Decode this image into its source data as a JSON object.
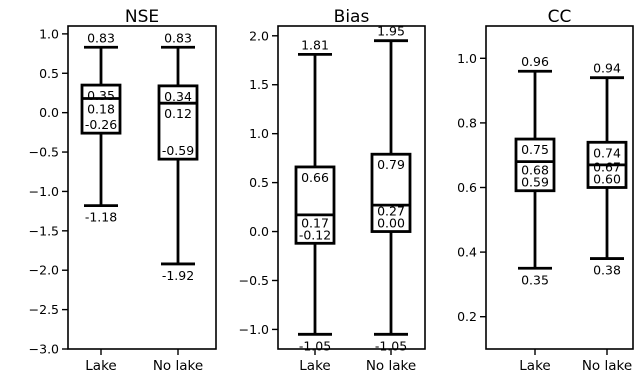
{
  "chart_data": [
    {
      "type": "box",
      "title": "NSE",
      "categories": [
        "Lake",
        "No lake"
      ],
      "ylim": [
        -3.0,
        1.1
      ],
      "yticks": [
        1.0,
        0.5,
        0.0,
        -0.5,
        -1.0,
        -1.5,
        -2.0,
        -2.5,
        -3.0
      ],
      "ytick_labels": [
        "1.0",
        "0.5",
        "0.0",
        "−0.5",
        "−1.0",
        "−1.5",
        "−2.0",
        "−2.5",
        "−3.0"
      ],
      "boxes": [
        {
          "category": "Lake",
          "whisker_low": -1.18,
          "q1": -0.26,
          "median": 0.18,
          "q3": 0.35,
          "whisker_high": 0.83,
          "labels": {
            "whisker_high": "0.83",
            "q3": "0.35",
            "median": "0.18",
            "q1": "-0.26",
            "whisker_low": "-1.18"
          }
        },
        {
          "category": "No lake",
          "whisker_low": -1.92,
          "q1": -0.59,
          "median": 0.12,
          "q3": 0.34,
          "whisker_high": 0.83,
          "labels": {
            "whisker_high": "0.83",
            "q3": "0.34",
            "median": "0.12",
            "q1": "-0.59",
            "whisker_low": "-1.92"
          }
        }
      ]
    },
    {
      "type": "box",
      "title": "Bias",
      "categories": [
        "Lake",
        "No lake"
      ],
      "ylim": [
        -1.2,
        2.1
      ],
      "yticks": [
        2.0,
        1.5,
        1.0,
        0.5,
        0.0,
        -0.5,
        -1.0
      ],
      "ytick_labels": [
        "2.0",
        "1.5",
        "1.0",
        "0.5",
        "0.0",
        "−0.5",
        "−1.0"
      ],
      "boxes": [
        {
          "category": "Lake",
          "whisker_low": -1.05,
          "q1": -0.12,
          "median": 0.17,
          "q3": 0.66,
          "whisker_high": 1.81,
          "labels": {
            "whisker_high": "1.81",
            "q3": "0.66",
            "median": "0.17",
            "q1": "-0.12",
            "whisker_low": "-1.05"
          }
        },
        {
          "category": "No lake",
          "whisker_low": -1.05,
          "q1": 0.0,
          "median": 0.27,
          "q3": 0.79,
          "whisker_high": 1.95,
          "labels": {
            "whisker_high": "1.95",
            "q3": "0.79",
            "median": "0.27",
            "q1": "0.00",
            "whisker_low": "-1.05"
          }
        }
      ]
    },
    {
      "type": "box",
      "title": "CC",
      "categories": [
        "Lake",
        "No lake"
      ],
      "ylim": [
        0.1,
        1.1
      ],
      "yticks": [
        1.0,
        0.8,
        0.6,
        0.4,
        0.2
      ],
      "ytick_labels": [
        "1.0",
        "0.8",
        "0.6",
        "0.4",
        "0.2"
      ],
      "boxes": [
        {
          "category": "Lake",
          "whisker_low": 0.35,
          "q1": 0.59,
          "median": 0.68,
          "q3": 0.75,
          "whisker_high": 0.96,
          "labels": {
            "whisker_high": "0.96",
            "q3": "0.75",
            "median": "0.68",
            "q1": "0.59",
            "whisker_low": "0.35"
          }
        },
        {
          "category": "No lake",
          "whisker_low": 0.38,
          "q1": 0.6,
          "median": 0.67,
          "q3": 0.74,
          "whisker_high": 0.94,
          "labels": {
            "whisker_high": "0.94",
            "q3": "0.74",
            "median": "0.67",
            "q1": "0.60",
            "whisker_low": "0.38"
          }
        }
      ]
    }
  ]
}
